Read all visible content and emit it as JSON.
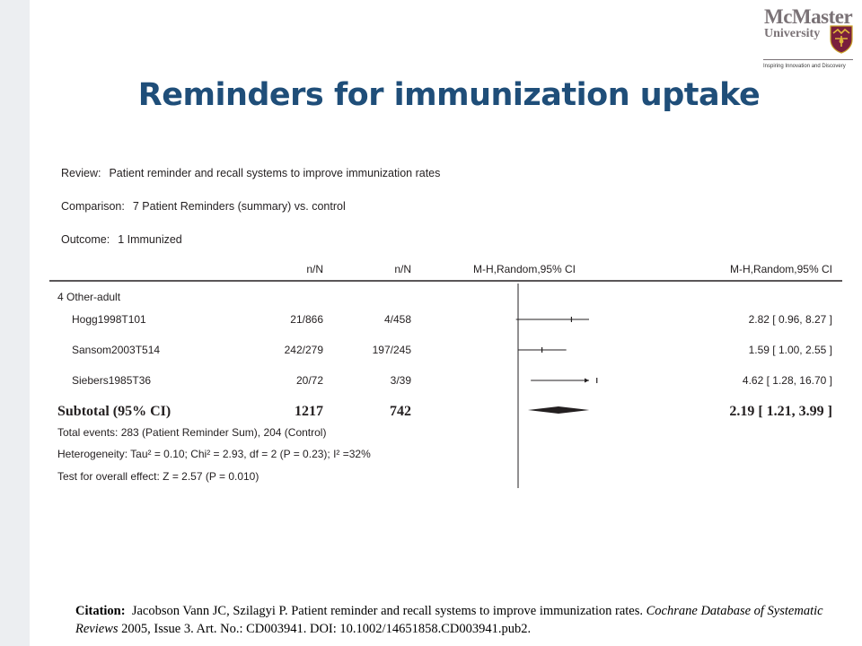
{
  "slide": {
    "title": "Reminders for immunization uptake"
  },
  "logo": {
    "name_line1": "McMaster",
    "name_line2": "University",
    "tagline": "Inspiring Innovation and Discovery"
  },
  "header": {
    "review_label": "Review:",
    "review_value": "Patient reminder and recall systems to improve immunization rates",
    "comparison_label": "Comparison:",
    "comparison_value": "7 Patient Reminders (summary) vs. control",
    "outcome_label": "Outcome:",
    "outcome_value": "1 Immunized"
  },
  "colors": {
    "title": "#1f4e79",
    "text": "#231f20"
  },
  "chart_data": {
    "type": "forest",
    "columns": [
      "",
      "n/N",
      "n/N",
      "M-H,Random,95% CI",
      "M-H,Random,95% CI"
    ],
    "subgroup": "4 Other-adult",
    "studies": [
      {
        "name": "Hogg1998T101",
        "treat": "21/866",
        "control": "4/458",
        "estimate": 2.82,
        "ci_low": 0.96,
        "ci_high": 8.27,
        "ci_text": "2.82 [ 0.96, 8.27 ]",
        "arrow": false
      },
      {
        "name": "Sansom2003T514",
        "treat": "242/279",
        "control": "197/245",
        "estimate": 1.59,
        "ci_low": 1.0,
        "ci_high": 2.55,
        "ci_text": "1.59 [ 1.00, 2.55 ]",
        "arrow": false
      },
      {
        "name": "Siebers1985T36",
        "treat": "20/72",
        "control": "3/39",
        "estimate": 4.62,
        "ci_low": 1.28,
        "ci_high": 16.7,
        "ci_text": "4.62 [ 1.28, 16.70 ]",
        "arrow": true
      }
    ],
    "subtotal": {
      "label": "Subtotal (95% CI)",
      "treat": "1217",
      "control": "742",
      "estimate": 2.19,
      "ci_low": 1.21,
      "ci_high": 3.99,
      "ci_text": "2.19 [ 1.21, 3.99 ]"
    },
    "footnotes": [
      "Total events: 283 (Patient Reminder Sum), 204 (Control)",
      "Heterogeneity: Tau² = 0.10; Chi² = 2.93, df = 2 (P = 0.23); I² =32%",
      "Test for overall effect: Z = 2.57 (P = 0.010)"
    ],
    "null_value": 1,
    "scale": "log"
  },
  "citation": {
    "label": "Citation:",
    "text_plain": "Jacobson Vann JC, Szilagyi P. Patient reminder and recall systems to improve immunization rates.",
    "journal": "Cochrane Database of Systematic Reviews",
    "text_tail": "2005, Issue 3. Art. No.: CD003941. DOI: 10.1002/14651858.CD003941.pub2."
  }
}
